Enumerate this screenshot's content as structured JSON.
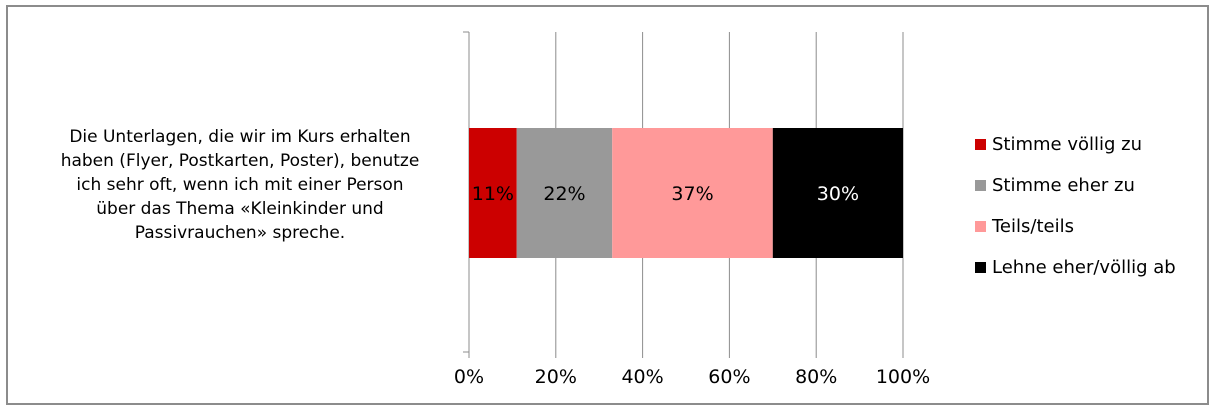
{
  "chart_data": {
    "type": "bar",
    "orientation": "horizontal",
    "stacked": true,
    "categories": [
      "Die Unterlagen, die wir im Kurs erhalten haben (Flyer, Postkarten, Poster), benutze ich sehr oft, wenn ich mit einer Person über das Thema «Kleinkinder und Passivrauchen» spreche."
    ],
    "category_lines": [
      "Die Unterlagen, die wir im Kurs erhalten",
      "haben (Flyer, Postkarten, Poster), benutze",
      "ich sehr oft, wenn ich mit einer Person",
      "über das Thema «Kleinkinder und",
      "Passivrauchen» spreche."
    ],
    "series": [
      {
        "name": "Stimme völlig zu",
        "values": [
          11
        ],
        "label": "11%",
        "color": "#cc0000",
        "label_color": "#000000"
      },
      {
        "name": "Stimme eher zu",
        "values": [
          22
        ],
        "label": "22%",
        "color": "#999999",
        "label_color": "#000000"
      },
      {
        "name": "Teils/teils",
        "values": [
          37
        ],
        "label": "37%",
        "color": "#ff9999",
        "label_color": "#000000"
      },
      {
        "name": "Lehne eher/völlig ab",
        "values": [
          30
        ],
        "label": "30%",
        "color": "#000000",
        "label_color": "#ffffff"
      }
    ],
    "xlim": [
      0,
      100
    ],
    "xticks": [
      0,
      20,
      40,
      60,
      80,
      100
    ],
    "xtick_labels": [
      "0%",
      "20%",
      "40%",
      "60%",
      "80%",
      "100%"
    ],
    "grid": "vertical",
    "legend_position": "right",
    "title": "",
    "xlabel": "",
    "ylabel": ""
  }
}
